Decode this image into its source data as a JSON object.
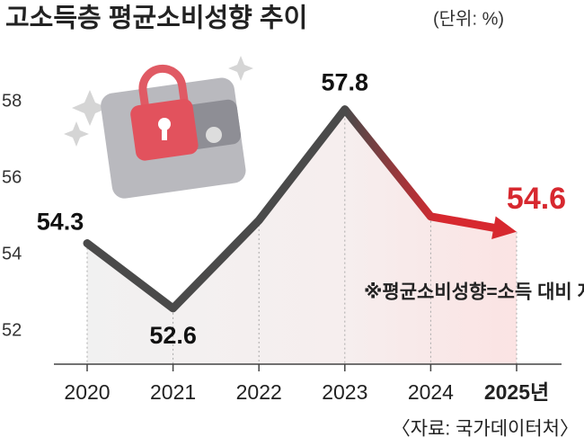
{
  "chart_data": {
    "type": "line",
    "title": "고소득층 평균소비성향 추이",
    "subtitle": "(단위: %)",
    "categories": [
      "2020",
      "2021",
      "2022",
      "2023",
      "2024",
      "2025년"
    ],
    "values": [
      54.3,
      52.6,
      54.9,
      57.8,
      55.0,
      54.6
    ],
    "value_labels": [
      "54.3",
      "52.6",
      null,
      "57.8",
      null,
      "54.6"
    ],
    "color": "#4a4a4a",
    "highlight_color": "#d7282f",
    "ylim": [
      51,
      60
    ],
    "yticks": [
      52,
      54,
      56,
      58
    ],
    "note": "※평균소비성향=소득 대비 지출",
    "source": "〈자료: 국가데이터처〉"
  }
}
